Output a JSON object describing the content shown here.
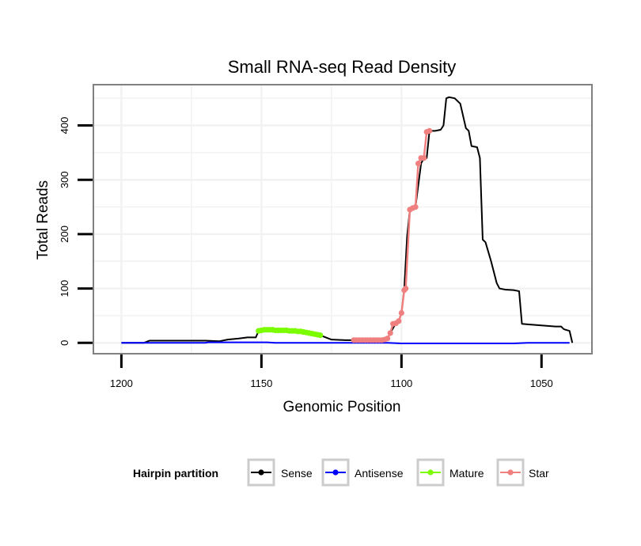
{
  "chart_data": {
    "type": "line",
    "title": "Small RNA-seq Read Density",
    "xlabel": "Genomic Position",
    "ylabel": "Total Reads",
    "xlim": [
      1210,
      1032
    ],
    "ylim": [
      -20,
      475
    ],
    "x_reversed": true,
    "grid": true,
    "x_ticks": [
      1200,
      1150,
      1100,
      1050
    ],
    "y_ticks": [
      0,
      100,
      200,
      300,
      400
    ],
    "legend": {
      "title": "Hairpin partition",
      "placement": "bottom",
      "entries": [
        {
          "label": "Sense",
          "color": "#000000"
        },
        {
          "label": "Antisense",
          "color": "#0000ff"
        },
        {
          "label": "Mature",
          "color": "#7cfc00"
        },
        {
          "label": "Star",
          "color": "#f08080"
        }
      ]
    },
    "series": [
      {
        "name": "Sense",
        "color": "#000000",
        "markers": false,
        "points": [
          [
            1200,
            0
          ],
          [
            1192,
            0
          ],
          [
            1190,
            4
          ],
          [
            1180,
            4
          ],
          [
            1175,
            4
          ],
          [
            1170,
            4
          ],
          [
            1165,
            3
          ],
          [
            1162,
            6
          ],
          [
            1158,
            8
          ],
          [
            1155,
            10
          ],
          [
            1152,
            10
          ],
          [
            1151,
            22
          ],
          [
            1148,
            24
          ],
          [
            1140,
            23
          ],
          [
            1135,
            20
          ],
          [
            1130,
            16
          ],
          [
            1128,
            12
          ],
          [
            1125,
            6
          ],
          [
            1120,
            5
          ],
          [
            1117,
            5
          ],
          [
            1106,
            6
          ],
          [
            1105,
            8
          ],
          [
            1104,
            18
          ],
          [
            1102,
            36
          ],
          [
            1101,
            40
          ],
          [
            1100,
            55
          ],
          [
            1099,
            100
          ],
          [
            1098,
            195
          ],
          [
            1097,
            245
          ],
          [
            1095,
            250
          ],
          [
            1093,
            330
          ],
          [
            1092,
            340
          ],
          [
            1091,
            340
          ],
          [
            1090,
            390
          ],
          [
            1089,
            390
          ],
          [
            1088,
            390
          ],
          [
            1086,
            392
          ],
          [
            1085,
            400
          ],
          [
            1084,
            450
          ],
          [
            1083,
            452
          ],
          [
            1081,
            450
          ],
          [
            1079,
            440
          ],
          [
            1077,
            395
          ],
          [
            1076,
            390
          ],
          [
            1075,
            362
          ],
          [
            1073,
            360
          ],
          [
            1072,
            340
          ],
          [
            1071,
            190
          ],
          [
            1070,
            185
          ],
          [
            1068,
            150
          ],
          [
            1066,
            110
          ],
          [
            1065,
            100
          ],
          [
            1063,
            98
          ],
          [
            1060,
            97
          ],
          [
            1059,
            96
          ],
          [
            1058,
            95
          ],
          [
            1057,
            35
          ],
          [
            1055,
            34
          ],
          [
            1050,
            32
          ],
          [
            1045,
            30
          ],
          [
            1043,
            30
          ],
          [
            1042,
            25
          ],
          [
            1040,
            22
          ],
          [
            1039,
            0
          ]
        ]
      },
      {
        "name": "Antisense",
        "color": "#0000ff",
        "markers": false,
        "points": [
          [
            1200,
            0
          ],
          [
            1190,
            0
          ],
          [
            1180,
            0
          ],
          [
            1170,
            0
          ],
          [
            1169,
            1
          ],
          [
            1165,
            1
          ],
          [
            1160,
            1
          ],
          [
            1155,
            1
          ],
          [
            1150,
            1
          ],
          [
            1148,
            1
          ],
          [
            1145,
            0
          ],
          [
            1140,
            0
          ],
          [
            1130,
            0
          ],
          [
            1120,
            0
          ],
          [
            1110,
            0
          ],
          [
            1105,
            0
          ],
          [
            1100,
            -1
          ],
          [
            1090,
            -1
          ],
          [
            1080,
            -1
          ],
          [
            1070,
            -1
          ],
          [
            1060,
            -1
          ],
          [
            1055,
            0
          ],
          [
            1050,
            0
          ],
          [
            1045,
            0
          ],
          [
            1040,
            0
          ]
        ]
      },
      {
        "name": "Mature",
        "color": "#7cfc00",
        "markers": true,
        "points": [
          [
            1151,
            22
          ],
          [
            1150,
            23
          ],
          [
            1149,
            24
          ],
          [
            1148,
            24
          ],
          [
            1147,
            24
          ],
          [
            1146,
            24
          ],
          [
            1145,
            23
          ],
          [
            1144,
            23
          ],
          [
            1143,
            23
          ],
          [
            1142,
            23
          ],
          [
            1141,
            23
          ],
          [
            1140,
            22
          ],
          [
            1139,
            22
          ],
          [
            1138,
            22
          ],
          [
            1137,
            21
          ],
          [
            1136,
            21
          ],
          [
            1135,
            20
          ],
          [
            1134,
            19
          ],
          [
            1133,
            18
          ],
          [
            1132,
            17
          ],
          [
            1131,
            16
          ],
          [
            1130,
            15
          ],
          [
            1129,
            14
          ]
        ]
      },
      {
        "name": "Star",
        "color": "#f08080",
        "markers": true,
        "points": [
          [
            1117,
            5
          ],
          [
            1116,
            5
          ],
          [
            1115,
            5
          ],
          [
            1114,
            5
          ],
          [
            1113,
            5
          ],
          [
            1112,
            5
          ],
          [
            1111,
            5
          ],
          [
            1110,
            5
          ],
          [
            1109,
            5
          ],
          [
            1108,
            5
          ],
          [
            1107,
            5
          ],
          [
            1106,
            6
          ],
          [
            1105,
            8
          ],
          [
            1104,
            18
          ],
          [
            1103,
            35
          ],
          [
            1102,
            36
          ],
          [
            1101,
            40
          ],
          [
            1100,
            55
          ],
          [
            1099,
            97
          ],
          [
            1098.5,
            100
          ],
          [
            1097,
            245
          ],
          [
            1096,
            248
          ],
          [
            1095,
            250
          ],
          [
            1094,
            330
          ],
          [
            1093,
            340
          ],
          [
            1092,
            340
          ],
          [
            1091,
            388
          ],
          [
            1090,
            390
          ]
        ]
      }
    ]
  }
}
